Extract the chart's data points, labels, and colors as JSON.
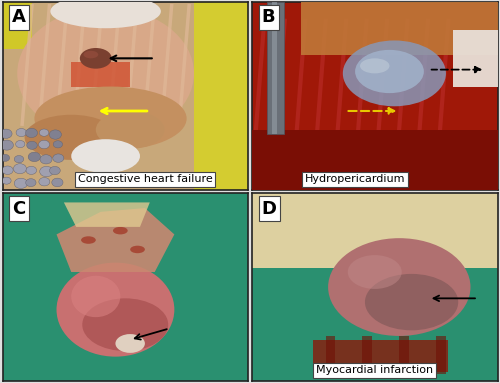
{
  "annotations": {
    "A": "Congestive heart failure",
    "B": "Hydropericardium",
    "C": "",
    "D": "Myocardial infarction"
  },
  "panel_label_fontsize": 13,
  "annotation_fontsize": 8,
  "figure_bg": "#e0e0e0",
  "dpi": 100,
  "figsize": [
    5.0,
    3.83
  ],
  "colors": {
    "A_bg": "#c8a87a",
    "A_ribs": "#d4b090",
    "A_muscle_rim": "#d09070",
    "A_heart": "#7a4030",
    "A_liver1": "#c09060",
    "A_liver2": "#b08050",
    "A_white_tissue": "#e8e0d0",
    "A_yellow_drape_right": "#d4cc30",
    "A_yellow_drape_left": "#d0c828",
    "A_intestines": "#9090a0",
    "B_bg": "#b02010",
    "B_blood": "#8b1005",
    "B_ribs": "#c04030",
    "B_heart_sac": "#8090b8",
    "B_heart_inner": "#a0a8c0",
    "B_metal": "#707880",
    "B_white": "#e0ddd8",
    "B_tissue_top": "#c07840",
    "C_bg": "#2a9070",
    "C_heart_main": "#c87870",
    "C_heart_dark": "#a06060",
    "C_tissue_top": "#d09080",
    "C_white_patch": "#e0c8b0",
    "D_bg": "#2a9070",
    "D_cream": "#e8deb8",
    "D_heart": "#b07878",
    "D_heart_dark": "#8b5050",
    "D_blood": "#802010"
  }
}
